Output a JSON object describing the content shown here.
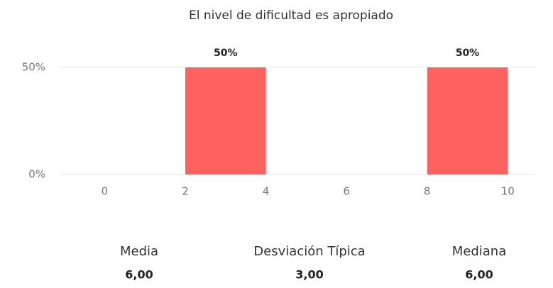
{
  "chart_data": {
    "type": "histogram",
    "title": "El nivel de dificultad es apropiado",
    "bins": [
      0,
      2,
      4,
      6,
      8,
      10
    ],
    "values": [
      0,
      50,
      0,
      0,
      50
    ],
    "value_labels": [
      null,
      "50%",
      null,
      null,
      "50%"
    ],
    "color": "#fd625e",
    "xlim": [
      -1.1,
      10.7
    ],
    "xticks": [
      0,
      2,
      4,
      6,
      8,
      10
    ],
    "ylim": [
      0,
      50
    ],
    "yticks": [
      {
        "value": 0,
        "label": "0%"
      },
      {
        "value": 50,
        "label": "50%"
      }
    ],
    "grid": true
  },
  "stats": [
    {
      "label": "Media",
      "value": "6,00"
    },
    {
      "label": "Desviación Típica",
      "value": "3,00"
    },
    {
      "label": "Mediana",
      "value": "6,00"
    }
  ]
}
